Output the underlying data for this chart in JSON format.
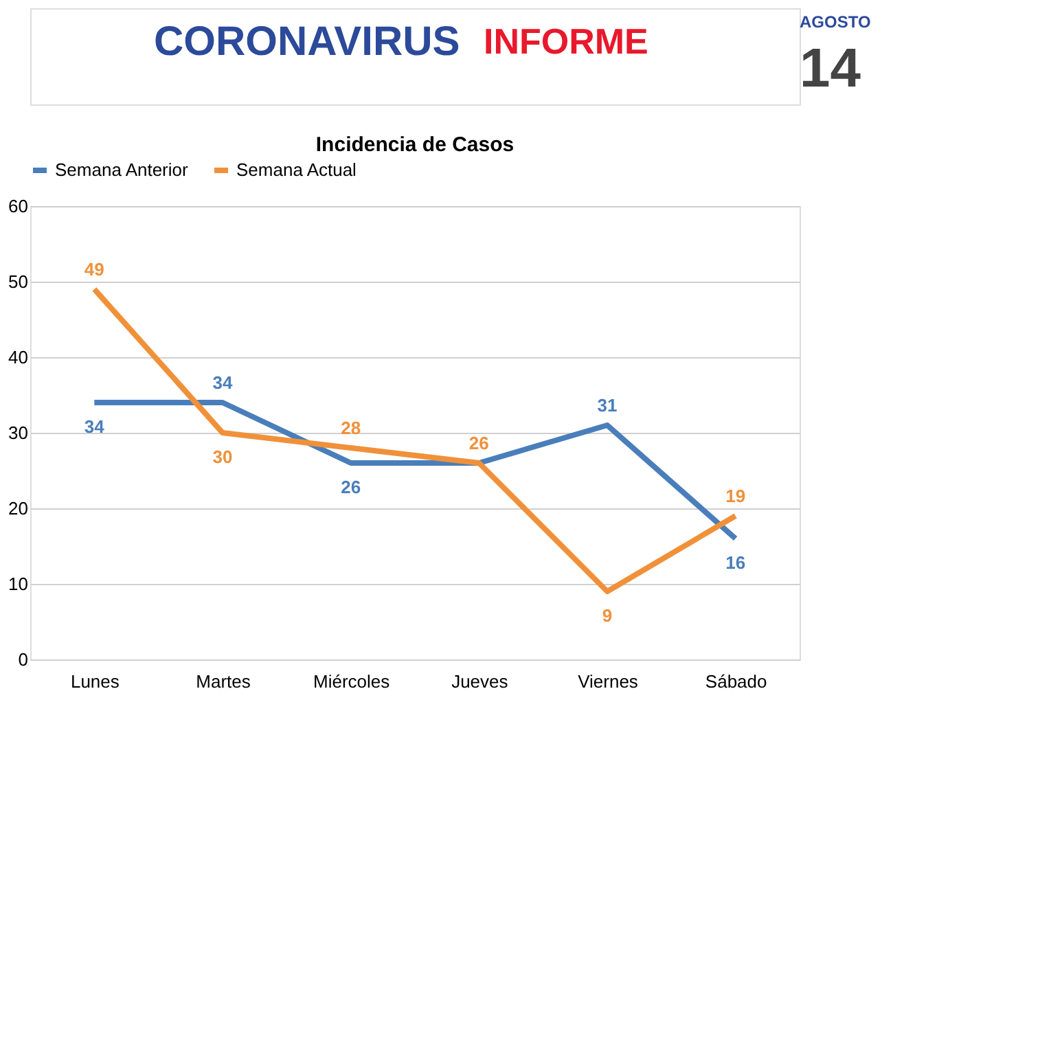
{
  "chart_data": {
    "type": "line",
    "title": "Incidencia de Casos",
    "annotations": [
      "CORONAVIRUS",
      "INFORME",
      "AGOSTO",
      "14"
    ],
    "categories": [
      "Lunes",
      "Martes",
      "Miércoles",
      "Jueves",
      "Viernes",
      "Sábado"
    ],
    "series": [
      {
        "name": "Semana Anterior",
        "color": "#4a7ebb",
        "values": [
          34,
          34,
          26,
          26,
          31,
          16
        ],
        "value_labels": [
          "34",
          "34",
          "26",
          null,
          "31",
          "16"
        ]
      },
      {
        "name": "Semana Actual",
        "color": "#f0913a",
        "values": [
          49,
          30,
          28,
          26,
          9,
          19
        ],
        "value_labels": [
          "49",
          "30",
          "28",
          "26",
          "9",
          "19"
        ]
      }
    ],
    "ylim": [
      0,
      60
    ],
    "yticks": [
      0,
      10,
      20,
      30,
      40,
      50,
      60
    ],
    "grid": "y",
    "legend": "top",
    "marker": "none",
    "line_style": "solid"
  }
}
